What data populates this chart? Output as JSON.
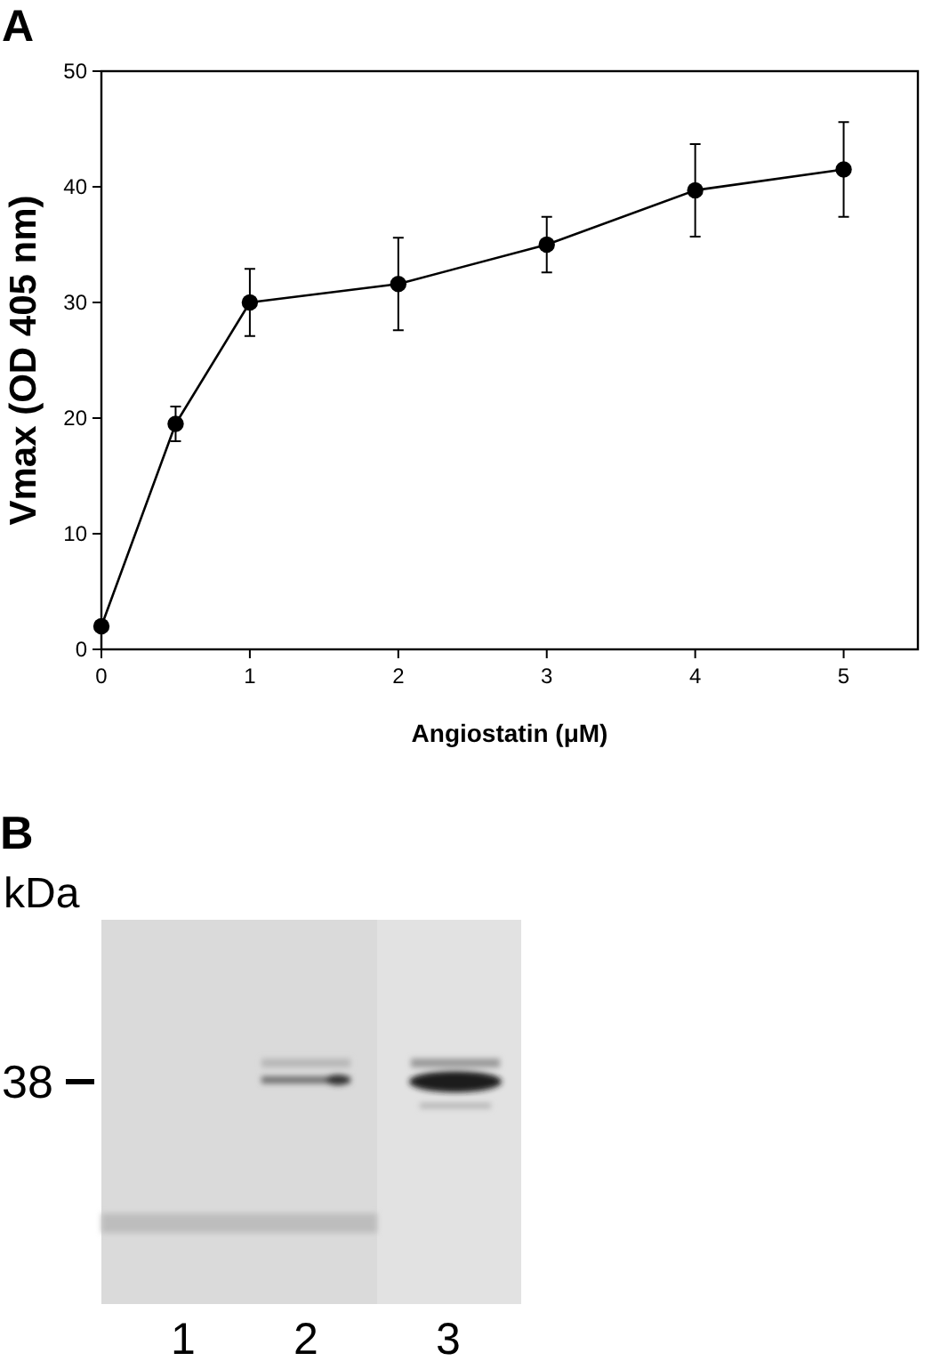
{
  "chart_data": [
    {
      "type": "line",
      "title": "A",
      "xlabel": "Angiostatin (μM)",
      "ylabel": "Vmax (OD 405 nm)",
      "x": [
        0,
        0.5,
        1,
        2,
        3,
        4,
        5
      ],
      "series": [
        {
          "color": "#000000",
          "values": [
            2,
            19.5,
            30,
            31.6,
            35,
            39.7,
            41.5
          ],
          "errors": [
            null,
            1.5,
            2.9,
            4,
            2.4,
            4,
            4.1
          ]
        }
      ],
      "xlim": [
        0,
        5.5
      ],
      "xticks": [
        0,
        1,
        2,
        3,
        4,
        5
      ],
      "ylim": [
        0,
        50
      ],
      "yticks": [
        0,
        10,
        20,
        30,
        40,
        50
      ],
      "marker": "circle",
      "line_style": "solid"
    },
    {
      "type": "other",
      "title": "B",
      "annotations": [
        "kDa",
        "38",
        "1",
        "2",
        "3"
      ]
    }
  ]
}
